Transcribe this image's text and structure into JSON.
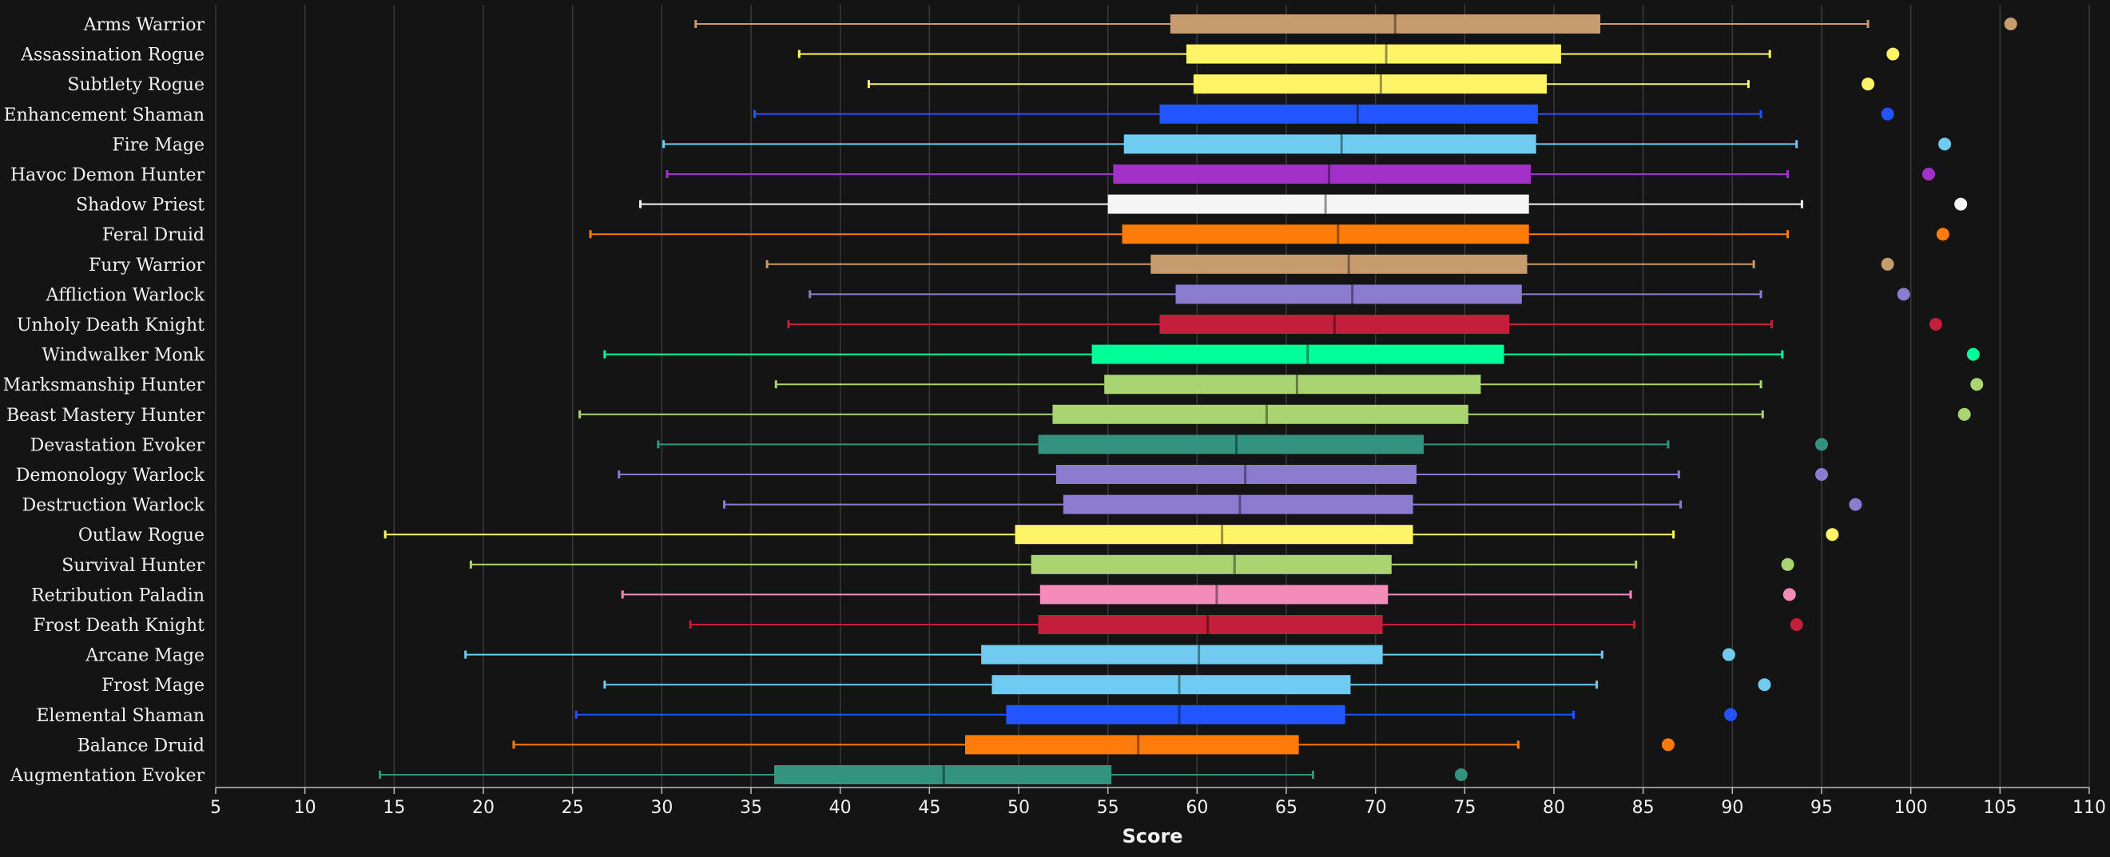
{
  "chart_data": {
    "type": "boxplot",
    "xlabel": "Score",
    "ylabel": "",
    "xlim": [
      5,
      110
    ],
    "x_ticks": [
      5,
      10,
      15,
      20,
      25,
      30,
      35,
      40,
      45,
      50,
      55,
      60,
      65,
      70,
      75,
      80,
      85,
      90,
      95,
      100,
      105,
      110
    ],
    "grid": "vertical",
    "legend": "none",
    "series": [
      {
        "name": "Arms Warrior",
        "color": "#C69B6D",
        "min": 31.9,
        "q1": 58.5,
        "median": 71.1,
        "q3": 82.6,
        "max": 97.6,
        "max_point": 105.6
      },
      {
        "name": "Assassination Rogue",
        "color": "#FFF468",
        "min": 37.7,
        "q1": 59.4,
        "median": 70.6,
        "q3": 80.4,
        "max": 92.1,
        "max_point": 99.0
      },
      {
        "name": "Subtlety Rogue",
        "color": "#FFF468",
        "min": 41.6,
        "q1": 59.8,
        "median": 70.3,
        "q3": 79.6,
        "max": 90.9,
        "max_point": 97.6
      },
      {
        "name": "Enhancement Shaman",
        "color": "#2255FF",
        "min": 35.2,
        "q1": 57.9,
        "median": 69.0,
        "q3": 79.1,
        "max": 91.6,
        "max_point": 98.7
      },
      {
        "name": "Fire Mage",
        "color": "#6FCBF0",
        "min": 30.1,
        "q1": 55.9,
        "median": 68.1,
        "q3": 79.0,
        "max": 93.6,
        "max_point": 101.9
      },
      {
        "name": "Havoc Demon Hunter",
        "color": "#A330C9",
        "min": 30.3,
        "q1": 55.3,
        "median": 67.4,
        "q3": 78.7,
        "max": 93.1,
        "max_point": 101.0
      },
      {
        "name": "Shadow Priest",
        "color": "#F5F5F5",
        "min": 28.8,
        "q1": 55.0,
        "median": 67.2,
        "q3": 78.6,
        "max": 93.9,
        "max_point": 102.8
      },
      {
        "name": "Feral Druid",
        "color": "#FF7C0A",
        "min": 26.0,
        "q1": 55.8,
        "median": 67.9,
        "q3": 78.6,
        "max": 93.1,
        "max_point": 101.8
      },
      {
        "name": "Fury Warrior",
        "color": "#C69B6D",
        "min": 35.9,
        "q1": 57.4,
        "median": 68.5,
        "q3": 78.5,
        "max": 91.2,
        "max_point": 98.7
      },
      {
        "name": "Affliction Warlock",
        "color": "#8B7CD0",
        "min": 38.3,
        "q1": 58.8,
        "median": 68.7,
        "q3": 78.2,
        "max": 91.6,
        "max_point": 99.6
      },
      {
        "name": "Unholy Death Knight",
        "color": "#C41E3A",
        "min": 37.1,
        "q1": 57.9,
        "median": 67.7,
        "q3": 77.5,
        "max": 92.2,
        "max_point": 101.4
      },
      {
        "name": "Windwalker Monk",
        "color": "#00FF98",
        "min": 26.8,
        "q1": 54.1,
        "median": 66.2,
        "q3": 77.2,
        "max": 92.8,
        "max_point": 103.5
      },
      {
        "name": "Marksmanship Hunter",
        "color": "#AAD372",
        "min": 36.4,
        "q1": 54.8,
        "median": 65.6,
        "q3": 75.9,
        "max": 91.6,
        "max_point": 103.7
      },
      {
        "name": "Beast Mastery Hunter",
        "color": "#AAD372",
        "min": 25.4,
        "q1": 51.9,
        "median": 63.9,
        "q3": 75.2,
        "max": 91.7,
        "max_point": 103.0
      },
      {
        "name": "Devastation Evoker",
        "color": "#33937F",
        "min": 29.8,
        "q1": 51.1,
        "median": 62.2,
        "q3": 72.7,
        "max": 86.4,
        "max_point": 95.0
      },
      {
        "name": "Demonology Warlock",
        "color": "#8B7CD0",
        "min": 27.6,
        "q1": 52.1,
        "median": 62.7,
        "q3": 72.3,
        "max": 87.0,
        "max_point": 95.0
      },
      {
        "name": "Destruction Warlock",
        "color": "#8B7CD0",
        "min": 33.5,
        "q1": 52.5,
        "median": 62.4,
        "q3": 72.1,
        "max": 87.1,
        "max_point": 96.9
      },
      {
        "name": "Outlaw Rogue",
        "color": "#FFF468",
        "min": 14.5,
        "q1": 49.8,
        "median": 61.4,
        "q3": 72.1,
        "max": 86.7,
        "max_point": 95.6
      },
      {
        "name": "Survival Hunter",
        "color": "#AAD372",
        "min": 19.3,
        "q1": 50.7,
        "median": 62.1,
        "q3": 70.9,
        "max": 84.6,
        "max_point": 93.1
      },
      {
        "name": "Retribution Paladin",
        "color": "#F48CBA",
        "min": 27.8,
        "q1": 51.2,
        "median": 61.1,
        "q3": 70.7,
        "max": 84.3,
        "max_point": 93.2
      },
      {
        "name": "Frost Death Knight",
        "color": "#C41E3A",
        "min": 31.6,
        "q1": 51.1,
        "median": 60.6,
        "q3": 70.4,
        "max": 84.5,
        "max_point": 93.6
      },
      {
        "name": "Arcane Mage",
        "color": "#6FCBF0",
        "min": 19.0,
        "q1": 47.9,
        "median": 60.1,
        "q3": 70.4,
        "max": 82.7,
        "max_point": 89.8
      },
      {
        "name": "Frost Mage",
        "color": "#6FCBF0",
        "min": 26.8,
        "q1": 48.5,
        "median": 59.0,
        "q3": 68.6,
        "max": 82.4,
        "max_point": 91.8
      },
      {
        "name": "Elemental Shaman",
        "color": "#2255FF",
        "min": 25.2,
        "q1": 49.3,
        "median": 59.0,
        "q3": 68.3,
        "max": 81.1,
        "max_point": 89.9
      },
      {
        "name": "Balance Druid",
        "color": "#FF7C0A",
        "min": 21.7,
        "q1": 47.0,
        "median": 56.7,
        "q3": 65.7,
        "max": 78.0,
        "max_point": 86.4
      },
      {
        "name": "Augmentation Evoker",
        "color": "#33937F",
        "min": 14.2,
        "q1": 36.3,
        "median": 45.8,
        "q3": 55.2,
        "max": 66.5,
        "max_point": 74.8
      }
    ]
  }
}
